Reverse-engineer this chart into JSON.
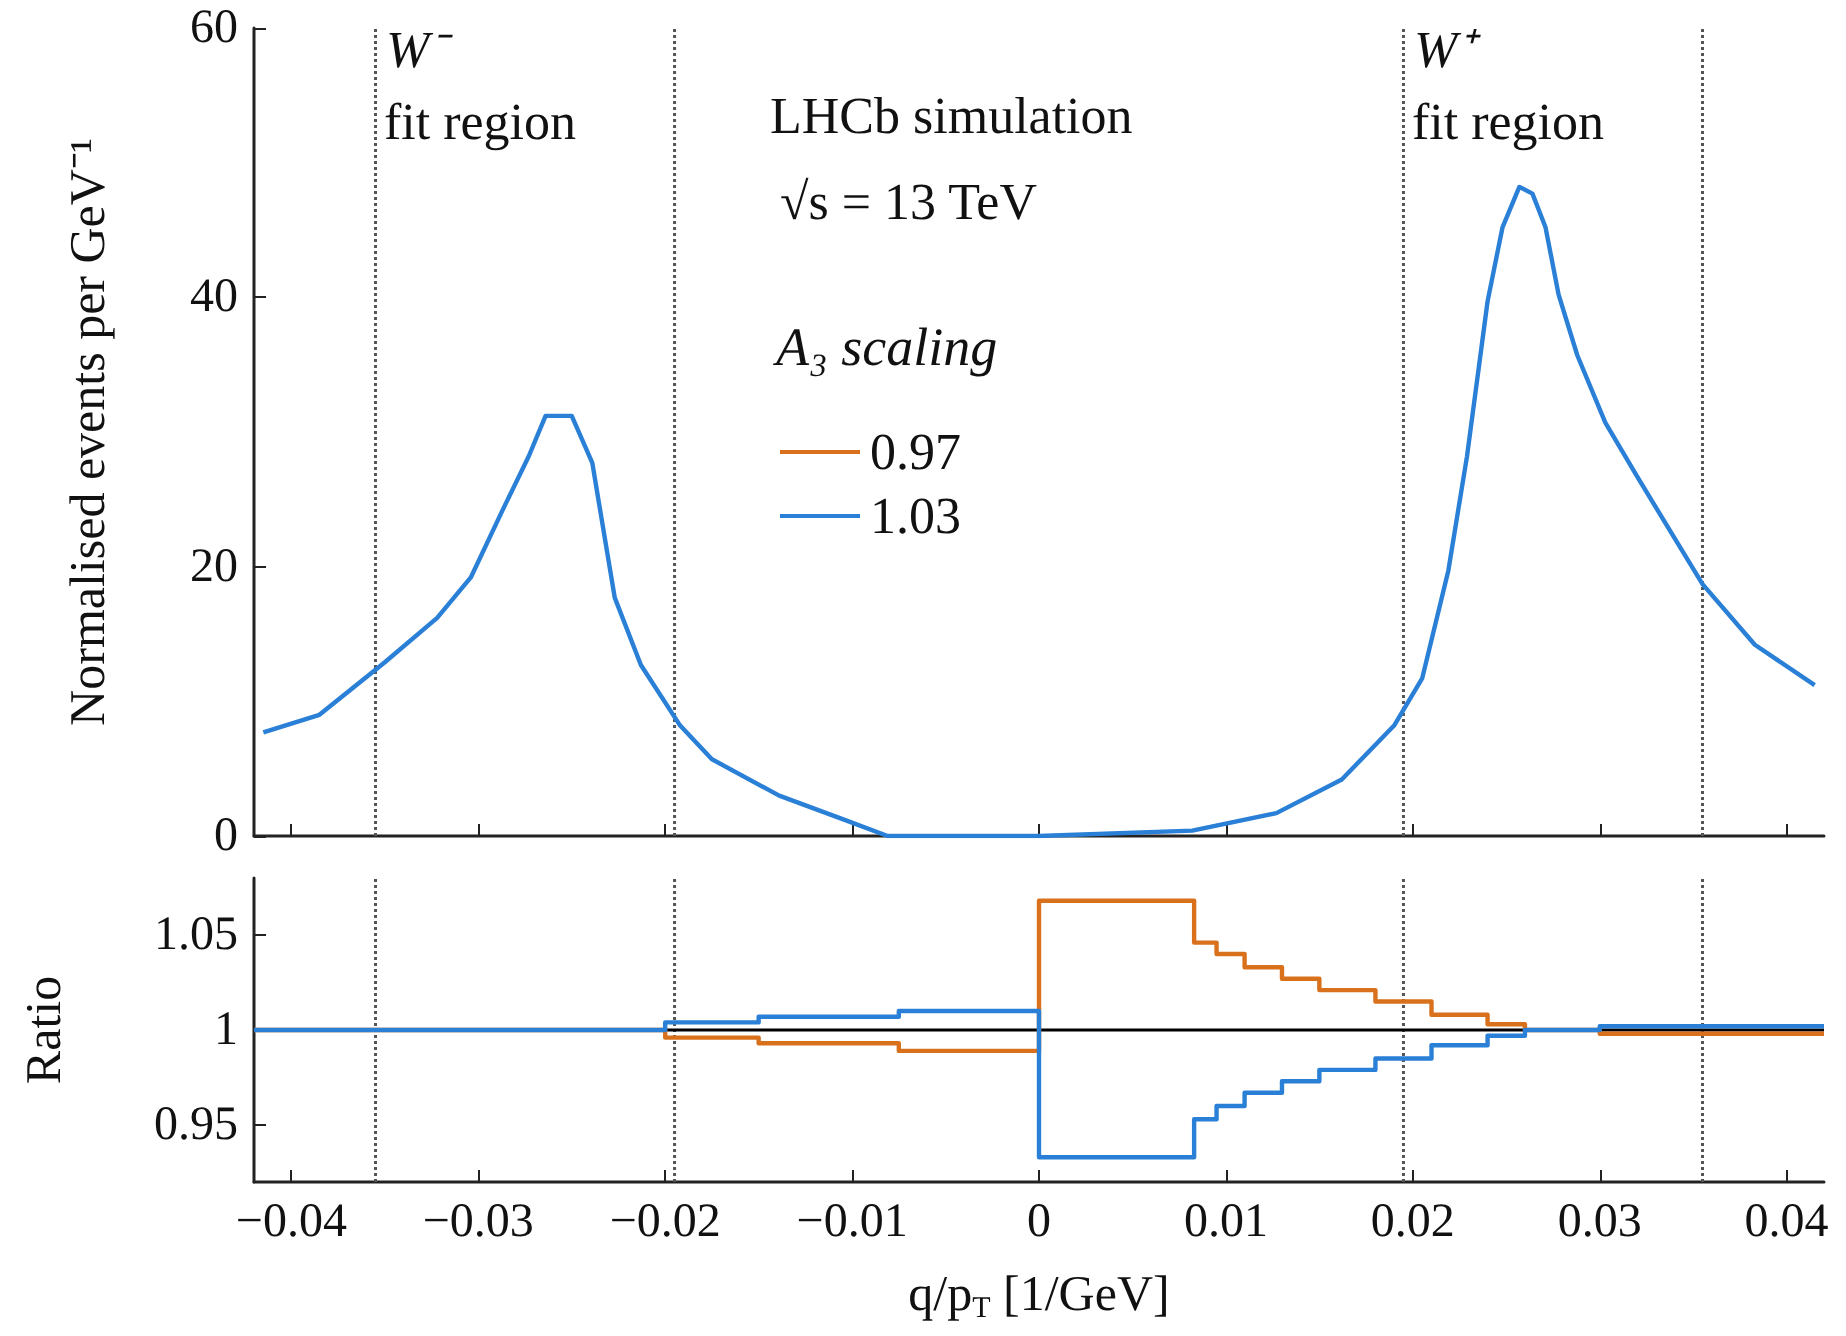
{
  "chart_data": [
    {
      "type": "line",
      "ylabel": "Normalised events per GeV⁻¹",
      "legend_title": "A₃ scaling",
      "legend": "bottom left",
      "annotations": [
        "W⁻",
        "fit region",
        "W⁺",
        "fit region",
        "LHCb simulation",
        "√s = 13 TeV"
      ],
      "xlim": [
        -0.042,
        0.042
      ],
      "xticks": [
        -0.04,
        -0.03,
        -0.02,
        -0.01,
        0,
        0.01,
        0.02,
        0.03,
        0.04
      ],
      "ylim": [
        0,
        60
      ],
      "yticks": [
        0,
        20,
        40,
        60
      ],
      "tick_labels": "y",
      "marker": "none",
      "ref_lines": [
        {
          "axis": "x",
          "value": -0.0355,
          "color": "#555555",
          "line_style": "dotted"
        },
        {
          "axis": "x",
          "value": -0.0195,
          "color": "#555555",
          "line_style": "dotted"
        },
        {
          "axis": "x",
          "value": 0.0195,
          "color": "#555555",
          "line_style": "dotted"
        },
        {
          "axis": "x",
          "value": 0.0355,
          "color": "#555555",
          "line_style": "dotted"
        }
      ],
      "series": [
        {
          "name": "0.97",
          "color": "#d9711c"
        },
        {
          "name": "1.03",
          "color": "#2a7fd6",
          "x": [
            -0.0415,
            -0.0385,
            -0.035,
            -0.0322,
            -0.0304,
            -0.0287,
            -0.0273,
            -0.0264,
            -0.025,
            -0.0239,
            -0.0227,
            -0.0213,
            -0.0192,
            -0.0175,
            -0.0139,
            -0.0104,
            -0.0081,
            0,
            0.0082,
            0.0127,
            0.0162,
            0.019,
            0.0205,
            0.0219,
            0.0229,
            0.024,
            0.0248,
            0.0257,
            0.0264,
            0.0271,
            0.0278,
            0.0288,
            0.0303,
            0.032,
            0.0355,
            0.0383,
            0.0415
          ],
          "values": [
            7.7,
            9,
            12.9,
            16.2,
            19.2,
            24.2,
            28.2,
            31.2,
            31.2,
            27.7,
            17.7,
            12.7,
            8.2,
            5.7,
            3,
            1.2,
            0,
            0,
            0.4,
            1.7,
            4.2,
            8.2,
            11.7,
            19.7,
            28.2,
            39.7,
            45.2,
            48.2,
            47.7,
            45.2,
            40.2,
            35.7,
            30.7,
            26.7,
            18.7,
            14.2,
            11.2
          ]
        }
      ]
    },
    {
      "type": "step",
      "ylabel": "Ratio",
      "xlabel": "q/p$_{T}$ [1/GeV]",
      "marker": "none",
      "xlim": [
        -0.042,
        0.042
      ],
      "xticks": [
        {
          "value": -0.04,
          "label": "−0.04"
        },
        {
          "value": -0.03,
          "label": "−0.03"
        },
        {
          "value": -0.02,
          "label": "−0.02"
        },
        {
          "value": -0.01,
          "label": "−0.01"
        },
        0,
        0.01,
        0.02,
        0.03,
        0.04
      ],
      "ylim": [
        0.92,
        1.08
      ],
      "yticks": [
        0.95,
        1,
        1.05
      ],
      "ref_lines": [
        {
          "axis": "x",
          "value": -0.0355,
          "color": "#555555",
          "line_style": "dotted"
        },
        {
          "axis": "x",
          "value": -0.0195,
          "color": "#555555",
          "line_style": "dotted"
        },
        {
          "axis": "x",
          "value": 0.0195,
          "color": "#555555",
          "line_style": "dotted"
        },
        {
          "axis": "x",
          "value": 0.0355,
          "color": "#555555",
          "line_style": "dotted"
        },
        {
          "axis": "y",
          "value": 1,
          "color": "#000000",
          "line_style": "solid"
        }
      ],
      "x": [
        -0.042,
        -0.026,
        -0.02,
        -0.015,
        -0.0075,
        0,
        0.0083,
        0.0095,
        0.011,
        0.013,
        0.015,
        0.018,
        0.021,
        0.024,
        0.026,
        0.03,
        0.042
      ],
      "series": [
        {
          "color": "#d9711c",
          "values": [
            1,
            1,
            0.996,
            0.993,
            0.989,
            1.068,
            1.046,
            1.04,
            1.033,
            1.027,
            1.021,
            1.015,
            1.008,
            1.003,
            1,
            0.998,
            0.998
          ]
        },
        {
          "color": "#2a7fd6",
          "values": [
            1,
            1,
            1.004,
            1.007,
            1.01,
            0.933,
            0.953,
            0.96,
            0.967,
            0.973,
            0.979,
            0.985,
            0.992,
            0.997,
            1,
            1.002,
            1.002
          ]
        }
      ]
    }
  ]
}
